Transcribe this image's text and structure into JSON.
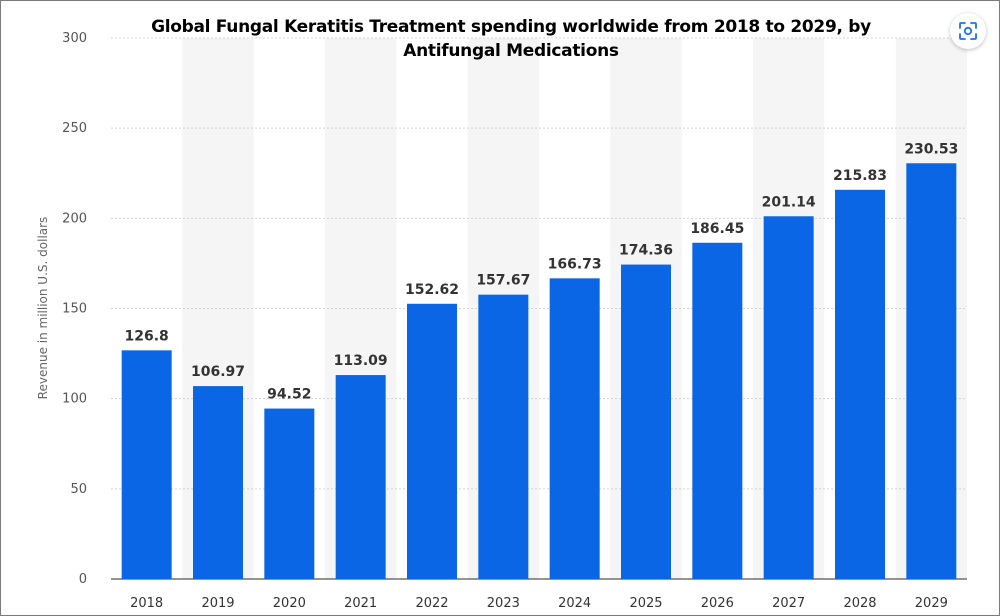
{
  "chart_data": {
    "type": "bar",
    "title": "Global Fungal Keratitis Treatment spending worldwide from 2018 to 2029, by Antifungal Medications",
    "ylabel": "Revenue in million U.S. dollars",
    "xlabel": "",
    "categories": [
      "2018",
      "2019",
      "2020",
      "2021",
      "2022",
      "2023",
      "2024",
      "2025",
      "2026",
      "2027",
      "2028",
      "2029"
    ],
    "values": [
      126.8,
      106.97,
      94.52,
      113.09,
      152.62,
      157.67,
      166.73,
      174.36,
      186.45,
      201.14,
      215.83,
      230.53
    ],
    "value_labels": [
      "126.8",
      "106.97",
      "94.52",
      "113.09",
      "152.62",
      "157.67",
      "166.73",
      "174.36",
      "186.45",
      "201.14",
      "215.83",
      "230.53"
    ],
    "y_ticks": [
      "0",
      "50",
      "100",
      "150",
      "200",
      "250",
      "300"
    ],
    "ylim": [
      0,
      300
    ],
    "grid": true,
    "bar_color": "#0a66e4",
    "band_color": "#f5f5f5",
    "grid_color": "#d4d4d4"
  },
  "controls": {
    "expand_icon": "expand-icon"
  }
}
